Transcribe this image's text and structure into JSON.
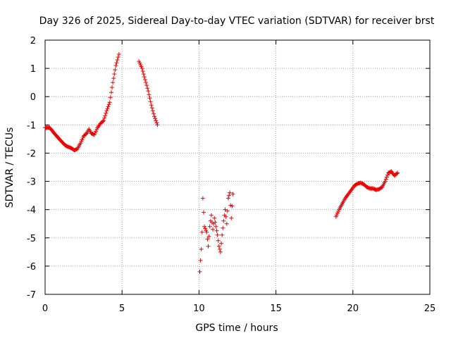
{
  "chart_data": {
    "type": "scatter",
    "title": "Day 326 of 2025, Sidereal Day-to-day VTEC variation (SDTVAR) for receiver brst",
    "xlabel": "GPS time / hours",
    "ylabel": "SDTVAR / TECUs",
    "xlim": [
      0,
      25
    ],
    "ylim": [
      -7,
      2
    ],
    "xticks": [
      "0",
      "5",
      "10",
      "15",
      "20",
      "25"
    ],
    "yticks": [
      "-7",
      "-6",
      "-5",
      "-4",
      "-3",
      "-2",
      "-1",
      "0",
      "1",
      "2"
    ],
    "grid": true,
    "marker": "+",
    "color": "#ee0000",
    "segments": [
      [
        [
          0,
          -1.1
        ],
        [
          0.3,
          -1.1
        ],
        [
          0.6,
          -1.3
        ],
        [
          1.0,
          -1.55
        ],
        [
          1.3,
          -1.72
        ],
        [
          1.5,
          -1.78
        ],
        [
          1.7,
          -1.82
        ],
        [
          1.9,
          -1.9
        ],
        [
          2.1,
          -1.85
        ],
        [
          2.3,
          -1.65
        ],
        [
          2.5,
          -1.4
        ],
        [
          2.7,
          -1.3
        ],
        [
          2.85,
          -1.15
        ],
        [
          3.0,
          -1.3
        ],
        [
          3.2,
          -1.35
        ],
        [
          3.4,
          -1.1
        ],
        [
          3.6,
          -0.95
        ],
        [
          3.8,
          -0.85
        ],
        [
          4.0,
          -0.5
        ],
        [
          4.2,
          -0.2
        ],
        [
          4.4,
          0.5
        ],
        [
          4.6,
          1.1
        ],
        [
          4.8,
          1.5
        ]
      ],
      [
        [
          6.1,
          1.25
        ],
        [
          6.3,
          1.0
        ],
        [
          6.5,
          0.6
        ],
        [
          6.7,
          0.2
        ],
        [
          6.9,
          -0.3
        ],
        [
          7.1,
          -0.7
        ],
        [
          7.3,
          -1.0
        ]
      ],
      [
        [
          10.05,
          -6.2
        ],
        [
          10.15,
          -5.4
        ],
        [
          10.2,
          -4.8
        ],
        [
          10.25,
          -3.6
        ],
        [
          10.35,
          -4.6
        ],
        [
          10.5,
          -4.8
        ],
        [
          10.6,
          -5.3
        ],
        [
          10.7,
          -4.6
        ],
        [
          10.8,
          -4.2
        ],
        [
          10.9,
          -4.7
        ],
        [
          11.0,
          -4.3
        ],
        [
          11.1,
          -4.6
        ],
        [
          11.2,
          -4.9
        ],
        [
          11.3,
          -5.3
        ],
        [
          11.4,
          -5.5
        ],
        [
          11.5,
          -4.9
        ],
        [
          11.6,
          -4.4
        ],
        [
          11.7,
          -4.0
        ],
        [
          11.8,
          -4.5
        ],
        [
          11.9,
          -3.6
        ],
        [
          12.0,
          -3.4
        ],
        [
          12.1,
          -4.3
        ],
        [
          12.2,
          -3.45
        ]
      ],
      [
        [
          18.9,
          -4.25
        ],
        [
          19.1,
          -4.0
        ],
        [
          19.3,
          -3.8
        ],
        [
          19.5,
          -3.6
        ],
        [
          19.7,
          -3.45
        ],
        [
          19.9,
          -3.3
        ],
        [
          20.1,
          -3.15
        ],
        [
          20.3,
          -3.08
        ],
        [
          20.5,
          -3.05
        ],
        [
          20.7,
          -3.1
        ],
        [
          20.9,
          -3.2
        ],
        [
          21.1,
          -3.25
        ],
        [
          21.3,
          -3.25
        ],
        [
          21.5,
          -3.3
        ],
        [
          21.7,
          -3.28
        ],
        [
          21.9,
          -3.2
        ],
        [
          22.1,
          -3.0
        ],
        [
          22.3,
          -2.7
        ],
        [
          22.5,
          -2.65
        ],
        [
          22.7,
          -2.8
        ],
        [
          22.9,
          -2.7
        ]
      ]
    ]
  }
}
